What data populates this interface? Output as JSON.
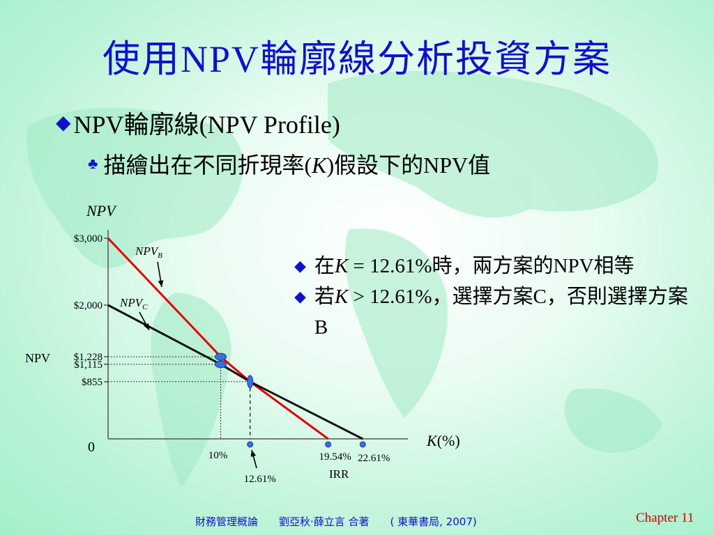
{
  "title_prefix": "使用",
  "title_npv": "NPV",
  "title_suffix": "輪廓線分析投資方案",
  "bullet1": "NPV輪廓線(NPV Profile)",
  "bullet2_a": "描繪出在不同折現率(",
  "bullet2_k": "K",
  "bullet2_b": ")假設下的NPV值",
  "notes": {
    "n1_a": "在",
    "n1_k": "K",
    "n1_b": " = 12.61%時，兩方案的NPV相等",
    "n2_a": "若",
    "n2_k": "K",
    "n2_b": " > 12.61%，選擇方案C，否則選擇方案B"
  },
  "footer": "財務管理概論　　劉亞秋‧薛立言  合著　　( 東華書局, 2007)",
  "chapter": "Chapter 11",
  "colors": {
    "title": "#1010cc",
    "npv_b": "#e00000",
    "npv_c": "#111111",
    "marker": "#3a6fe0"
  },
  "chart_data": {
    "type": "line",
    "ylabel": "NPV",
    "ylabel_left": "NPV",
    "xlabel_k": "K",
    "xlabel_unit": "(%)",
    "origin_label": "0",
    "xlim": [
      0,
      26
    ],
    "ylim": [
      0,
      3000
    ],
    "y_ticks": [
      {
        "value": 3000,
        "label": "$3,000"
      },
      {
        "value": 2000,
        "label": "$2,000"
      },
      {
        "value": 1228,
        "label": "$1,228"
      },
      {
        "value": 1115,
        "label": "$1,115"
      },
      {
        "value": 855,
        "label": "$855"
      }
    ],
    "series": [
      {
        "name": "NPV",
        "sub": "B",
        "x": [
          0,
          10,
          12.61,
          19.54
        ],
        "y": [
          3000,
          1228,
          855,
          0
        ]
      },
      {
        "name": "NPV",
        "sub": "C",
        "x": [
          0,
          10,
          12.61,
          22.61
        ],
        "y": [
          2000,
          1115,
          855,
          0
        ]
      }
    ],
    "points": [
      {
        "x": 10,
        "y": 1228
      },
      {
        "x": 10,
        "y": 1115
      },
      {
        "x": 12.61,
        "y": 855
      }
    ],
    "x_markers": [
      {
        "x": 10,
        "label": "10%"
      },
      {
        "x": 12.61,
        "label": "12.61%"
      },
      {
        "x": 19.54,
        "label": "19.54%"
      },
      {
        "x": 22.61,
        "label": "22.61%"
      }
    ],
    "irr_label": "IRR"
  }
}
